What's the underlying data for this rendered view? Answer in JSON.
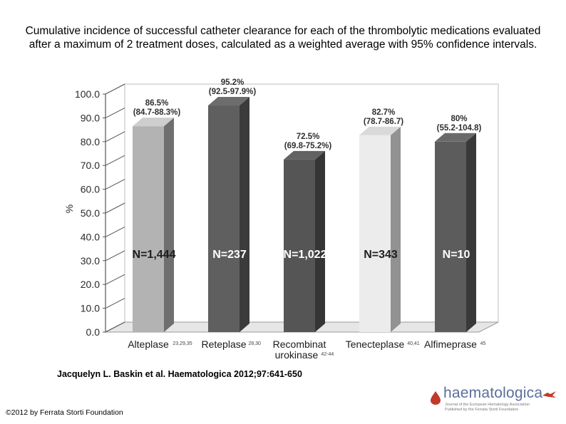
{
  "title": "Cumulative incidence of successful catheter clearance for each of the thrombolytic medications evaluated after a maximum of 2 treatment doses, calculated as a weighted average with 95% confidence intervals.",
  "citation": "Jacquelyn L. Baskin et al. Haematologica 2012;97:641-650",
  "copyright": "©2012 by Ferrata Storti Foundation",
  "logo": {
    "name": "haematologica",
    "line1": "Journal of the European Hematology Association",
    "line2": "Published by the Ferrata Storti Foundation"
  },
  "colors": {
    "Alteplase": "#b3b3b3",
    "Reteplase": "#5f5f5f",
    "Recombinant urokinase": "#555555",
    "Tenecteplase": "#ececec",
    "Alfimeprase": "#5c5c5c"
  },
  "chart_data": {
    "type": "bar",
    "title": "",
    "ylabel": "%",
    "xlabel": "",
    "ylim": [
      0,
      100
    ],
    "yticks": [
      "0.0",
      "10.0",
      "20.0",
      "30.0",
      "40.0",
      "50.0",
      "60.0",
      "70.0",
      "80.0",
      "90.0",
      "100.0"
    ],
    "categories": [
      "Alteplase",
      "Reteplase",
      "Recombinant urokinase",
      "Tenecteplase",
      "Alfimeprase"
    ],
    "category_labels": [
      [
        "Alteplase"
      ],
      [
        "Reteplase"
      ],
      [
        "Recombinat",
        "urokinase"
      ],
      [
        "Tenecteplase"
      ],
      [
        "Alfimeprase"
      ]
    ],
    "category_refs": [
      "23,29,35",
      "28,30",
      "42-44",
      "40,41",
      "45"
    ],
    "values": [
      86.5,
      95.2,
      72.5,
      82.7,
      80
    ],
    "value_labels": [
      "86.5%",
      "95.2%",
      "72.5%",
      "82.7%",
      "80%"
    ],
    "ci_labels": [
      "(84.7-88.3%)",
      "(92.5-97.9%)",
      "(69.8-75.2%)",
      "(78.7-86.7)",
      "(55.2-104.8)"
    ],
    "n_labels": [
      "N=1,444",
      "N=237",
      "N=1,022",
      "N=343",
      "N=10"
    ],
    "grid": false,
    "legend": "none"
  }
}
